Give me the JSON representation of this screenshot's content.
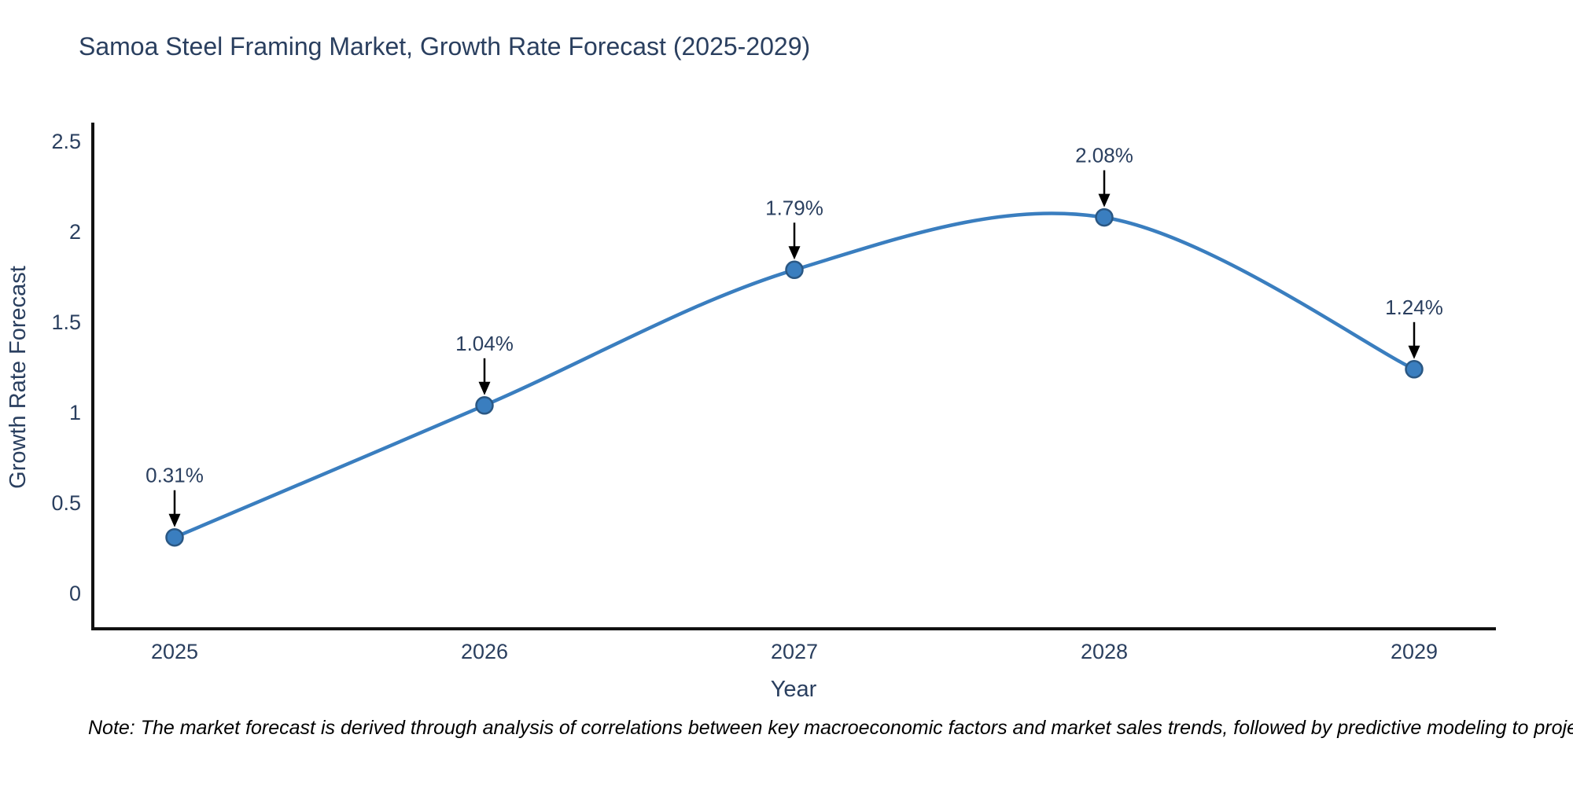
{
  "chart_data": {
    "type": "line",
    "title": "Samoa Steel Framing Market, Growth Rate Forecast (2025-2029)",
    "xlabel": "Year",
    "ylabel": "Growth Rate Forecast",
    "x": [
      2025,
      2026,
      2027,
      2028,
      2029
    ],
    "values": [
      0.31,
      1.04,
      1.79,
      2.08,
      1.24
    ],
    "point_labels": [
      "0.31%",
      "1.04%",
      "1.79%",
      "2.08%",
      "1.24%"
    ],
    "yticks": [
      0,
      0.5,
      1,
      1.5,
      2,
      2.5
    ],
    "ylim": [
      -0.2,
      2.6
    ],
    "line_shape": "spline",
    "grid": false,
    "legend": "none",
    "line_color": "#3a7ebf",
    "marker_color": "#3a7ebf",
    "marker_edge_color": "#2a5783",
    "arrow_color": "#000000",
    "text_color": "#2a3f5f",
    "axis_color": "#111111"
  },
  "note": "Note: The market forecast is derived through analysis of correlations between key macroeconomic factors and market sales trends, followed by predictive modeling to project future sales."
}
